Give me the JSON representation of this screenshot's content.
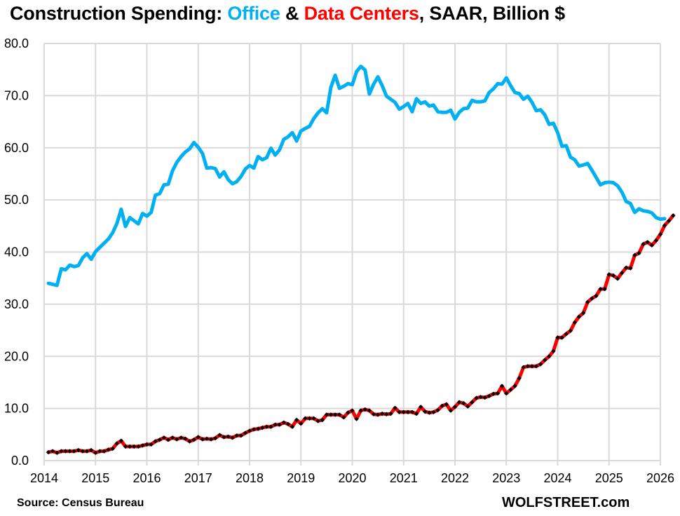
{
  "title": {
    "prefix": "Construction Spending: ",
    "office": "Office",
    "amp": " & ",
    "data_centers": "Data Centers",
    "suffix": ", SAAR, Billion $"
  },
  "footer": {
    "source": "Source: Census Bureau",
    "brand": "WOLFSTREET.com"
  },
  "colors": {
    "office": "#00b0f0",
    "data_centers": "#ff0000",
    "markers": "#000000",
    "grid": "#d9d9d9"
  },
  "chart_data": {
    "type": "line",
    "title": "Construction Spending: Office & Data Centers, SAAR, Billion $",
    "xlabel": "",
    "ylabel": "",
    "ylim": [
      0,
      80
    ],
    "xlim": [
      2014,
      2026
    ],
    "grid": true,
    "legend": "in title",
    "y_ticks": [
      "0.0",
      "10.0",
      "20.0",
      "30.0",
      "40.0",
      "50.0",
      "60.0",
      "70.0",
      "80.0"
    ],
    "x_ticks": [
      "2014",
      "2015",
      "2016",
      "2017",
      "2018",
      "2019",
      "2020",
      "2021",
      "2022",
      "2023",
      "2024",
      "2025",
      "2026"
    ],
    "x_start": 2014.0,
    "x_step_months": 1,
    "series": [
      {
        "name": "Office",
        "color": "#00b0f0",
        "markers": false,
        "values": [
          34.0,
          33.8,
          33.6,
          36.8,
          36.6,
          37.5,
          37.2,
          37.4,
          38.9,
          39.7,
          38.6,
          40.1,
          40.9,
          41.7,
          42.5,
          43.7,
          45.5,
          48.2,
          44.9,
          46.6,
          46.0,
          45.4,
          47.4,
          46.9,
          47.6,
          50.9,
          51.2,
          52.9,
          53.0,
          55.6,
          57.2,
          58.3,
          59.2,
          59.8,
          61.0,
          60.1,
          58.9,
          56.1,
          56.2,
          56.0,
          54.4,
          55.4,
          53.9,
          53.1,
          53.5,
          54.5,
          55.9,
          56.6,
          56.1,
          58.3,
          57.7,
          58.1,
          59.9,
          58.6,
          59.6,
          61.6,
          62.1,
          62.9,
          61.3,
          63.2,
          63.7,
          64.1,
          65.6,
          66.7,
          67.5,
          66.7,
          71.6,
          73.9,
          71.4,
          71.8,
          72.3,
          72.1,
          74.6,
          75.6,
          74.9,
          70.3,
          72.2,
          73.6,
          71.9,
          69.9,
          69.3,
          68.7,
          67.4,
          67.9,
          68.5,
          66.9,
          69.4,
          68.5,
          68.8,
          68.0,
          68.2,
          66.9,
          66.8,
          66.8,
          67.2,
          65.5,
          66.8,
          67.5,
          67.6,
          69.1,
          68.8,
          68.8,
          69.0,
          70.6,
          71.3,
          72.3,
          72.2,
          73.4,
          71.9,
          70.6,
          70.4,
          69.3,
          69.9,
          68.7,
          67.1,
          67.3,
          66.3,
          64.5,
          64.7,
          62.9,
          60.3,
          60.4,
          58.2,
          57.7,
          56.5,
          56.7,
          57.0,
          55.7,
          54.3,
          52.9,
          53.3,
          53.4,
          53.3,
          52.7,
          51.5,
          49.7,
          49.3,
          47.6,
          48.3,
          47.9,
          47.8,
          47.5,
          46.6,
          46.3,
          46.4
        ]
      },
      {
        "name": "Data Centers",
        "color": "#ff0000",
        "markers": true,
        "values": [
          1.6,
          1.8,
          1.5,
          1.8,
          1.8,
          1.8,
          1.8,
          2.0,
          1.8,
          1.8,
          2.0,
          1.5,
          1.8,
          1.8,
          2.1,
          2.3,
          3.3,
          3.8,
          2.7,
          2.7,
          2.7,
          2.7,
          2.9,
          3.1,
          3.1,
          3.7,
          4.0,
          4.4,
          4.0,
          4.4,
          4.1,
          4.4,
          4.2,
          3.7,
          4.0,
          4.5,
          4.1,
          4.2,
          4.1,
          4.3,
          4.9,
          4.5,
          4.6,
          4.4,
          4.8,
          4.8,
          5.3,
          5.7,
          6.0,
          6.1,
          6.3,
          6.5,
          6.5,
          6.9,
          6.9,
          7.3,
          7.0,
          6.5,
          7.8,
          7.1,
          8.1,
          8.1,
          8.1,
          7.6,
          7.8,
          8.8,
          8.8,
          8.8,
          8.8,
          8.3,
          9.2,
          9.6,
          8.0,
          9.6,
          9.8,
          9.6,
          8.9,
          8.8,
          9.0,
          8.9,
          9.0,
          10.1,
          9.3,
          9.3,
          9.3,
          9.3,
          9.0,
          10.3,
          9.4,
          9.2,
          9.3,
          9.7,
          10.5,
          10.8,
          9.6,
          10.3,
          11.2,
          11.0,
          10.4,
          11.2,
          12.0,
          12.2,
          12.1,
          12.4,
          12.8,
          12.9,
          14.3,
          12.9,
          13.6,
          14.3,
          15.8,
          17.9,
          18.1,
          18.1,
          18.1,
          18.5,
          19.3,
          20.0,
          21.0,
          23.6,
          23.6,
          24.3,
          24.9,
          26.5,
          27.6,
          28.3,
          30.4,
          31.1,
          31.6,
          32.9,
          32.9,
          35.7,
          35.5,
          34.9,
          36.0,
          37.0,
          36.9,
          39.4,
          39.8,
          41.5,
          41.9,
          41.3,
          42.2,
          43.4,
          45.1,
          46.0,
          47.0
        ]
      }
    ]
  }
}
